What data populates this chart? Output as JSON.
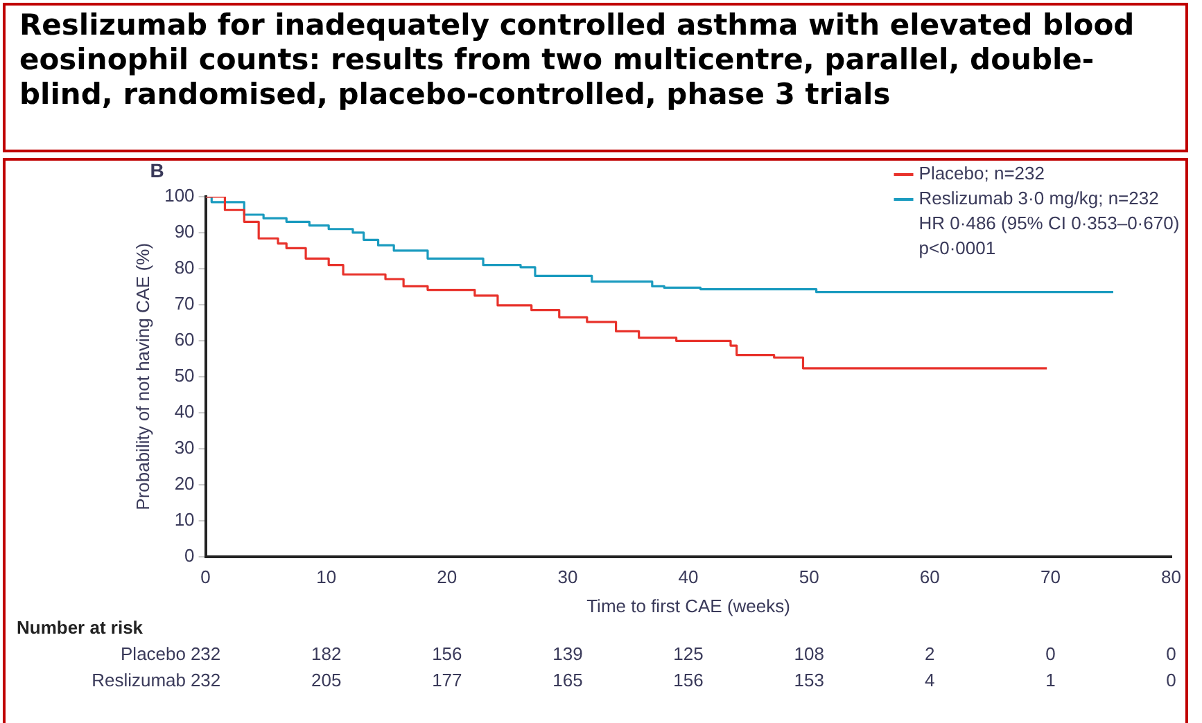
{
  "chart_data": {
    "type": "step",
    "title": "Reslizumab for inadequately controlled asthma with elevated blood eosinophil counts: results from two multicentre, parallel, double-blind, randomised, placebo-controlled, phase 3 trials",
    "xlabel": "Time to first CAE (weeks)",
    "ylabel": "Probability of not having CAE (%)",
    "xlim": [
      0,
      80
    ],
    "xticks": [
      0,
      10,
      20,
      30,
      40,
      50,
      60,
      70,
      80
    ],
    "ylim": [
      0,
      100
    ],
    "yticks": [
      0,
      10,
      20,
      30,
      40,
      50,
      60,
      70,
      80,
      90,
      100
    ],
    "grid": false,
    "legend": "top right",
    "marker": "none",
    "line_style": "solid",
    "series": [
      {
        "name": "Placebo; n=232",
        "color": "#e8322b",
        "x": [
          0,
          1.6,
          3.2,
          4.4,
          6,
          6.7,
          8.3,
          10.2,
          11.4,
          14.9,
          16.4,
          18.4,
          22.3,
          24.2,
          27,
          29.3,
          31.6,
          34,
          35.9,
          39,
          43.5,
          44,
          47.1,
          49.5,
          69.7
        ],
        "values": [
          100,
          96.3,
          93,
          88.4,
          87,
          85.7,
          82.8,
          81,
          78.4,
          77.1,
          75.1,
          74.1,
          72.5,
          69.8,
          68.5,
          66.5,
          65.2,
          62.6,
          60.8,
          59.9,
          58.6,
          56,
          55.3,
          52.3,
          52.3
        ]
      },
      {
        "name": "Reslizumab 3·0 mg/kg; n=232",
        "color": "#1a9bbf",
        "x": [
          0,
          0.5,
          3.2,
          4.8,
          6.7,
          8.6,
          10.2,
          12.2,
          13.1,
          14.3,
          15.6,
          18.4,
          23,
          26.1,
          27.3,
          32,
          37,
          38,
          41,
          50.6,
          75.2
        ],
        "values": [
          100,
          98.5,
          95,
          94,
          93,
          92,
          91,
          90,
          88,
          86.5,
          85,
          82.8,
          81,
          80.4,
          78,
          76.4,
          75.1,
          74.7,
          74.3,
          73.5,
          73.5
        ]
      }
    ],
    "annotations": [
      "B",
      "HR 0·486 (95% CI 0·353–0·670)",
      "p<0·0001",
      "Number at risk",
      "Placebo",
      "232",
      "182",
      "156",
      "139",
      "125",
      "108",
      "2",
      "0",
      "0",
      "Reslizumab",
      "232",
      "205",
      "177",
      "165",
      "156",
      "153",
      "4",
      "1",
      "0"
    ]
  }
}
